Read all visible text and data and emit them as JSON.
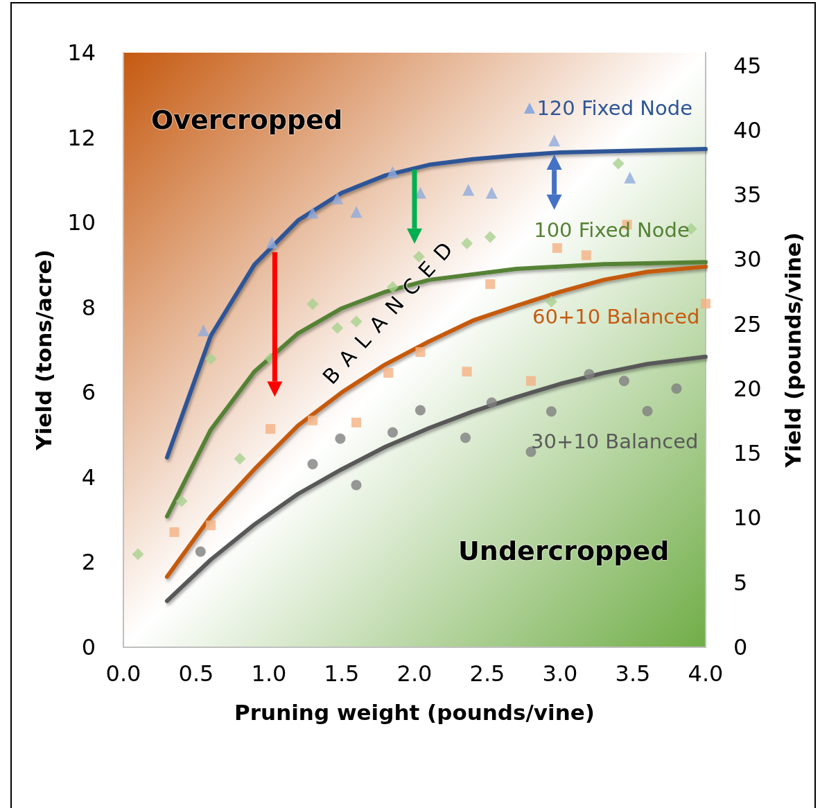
{
  "chart_data": {
    "type": "scatter",
    "xlabel": "Pruning weight (pounds/vine)",
    "ylabel": "Yield (tons/acre)",
    "y2label": "Yield (pounds/vine)",
    "xlim": [
      0,
      4
    ],
    "xticks": [
      {
        "value": 0,
        "label": "0.0"
      },
      0.5,
      {
        "value": 1,
        "label": "1.0"
      },
      1.5,
      {
        "value": 2,
        "label": "2.0"
      },
      2.5,
      {
        "value": 3,
        "label": "3.0"
      },
      3.5,
      {
        "value": 4,
        "label": "4.0"
      }
    ],
    "ylim": [
      0,
      14
    ],
    "yticks": [
      0,
      2,
      4,
      6,
      8,
      10,
      12,
      14
    ],
    "y2lim": [
      0,
      46
    ],
    "y2ticks": [
      0,
      5,
      10,
      15,
      20,
      25,
      30,
      35,
      40,
      45
    ],
    "grid": false,
    "legend": false,
    "annotations": [
      "Overcropped",
      "Undercropped",
      "BALANCED"
    ],
    "series": [
      {
        "marker": "triangle",
        "color": "#8faadc",
        "x": [
          0.55,
          1.02,
          1.3,
          1.47,
          1.6,
          1.85,
          2.04,
          2.37,
          2.53,
          2.96,
          3.48
        ],
        "values": [
          7.46,
          9.53,
          10.23,
          10.57,
          10.25,
          11.19,
          10.7,
          10.77,
          10.7,
          11.93,
          11.06
        ]
      },
      {
        "marker": "diamond",
        "color": "#a9d18e",
        "x": [
          0.1,
          0.4,
          0.6,
          0.8,
          1.01,
          1.3,
          1.47,
          1.6,
          1.85,
          2.03,
          2.36,
          2.52,
          2.94,
          3.4,
          3.9
        ],
        "values": [
          2.19,
          3.44,
          6.79,
          4.44,
          6.8,
          8.08,
          7.52,
          7.67,
          8.48,
          9.2,
          9.51,
          9.66,
          8.14,
          11.39,
          9.85
        ]
      },
      {
        "marker": "square",
        "color": "#f4b183",
        "x": [
          0.35,
          0.6,
          1.01,
          1.3,
          1.6,
          1.82,
          2.04,
          2.36,
          2.52,
          2.8,
          2.98,
          3.18,
          3.46,
          4.0
        ],
        "values": [
          2.71,
          2.87,
          5.14,
          5.34,
          5.29,
          6.46,
          6.95,
          6.49,
          8.55,
          6.27,
          9.4,
          9.23,
          9.95,
          8.09
        ]
      },
      {
        "marker": "circle",
        "color": "#7f7f7f",
        "x": [
          0.53,
          1.3,
          1.49,
          1.6,
          1.85,
          2.04,
          2.35,
          2.53,
          2.8,
          2.94,
          3.2,
          3.44,
          3.6,
          3.8
        ],
        "values": [
          2.25,
          4.31,
          4.91,
          3.82,
          5.06,
          5.58,
          4.93,
          5.76,
          4.6,
          5.55,
          6.43,
          6.27,
          5.56,
          6.09
        ]
      },
      {
        "type": "line",
        "name": "120 Fixed Node",
        "marker": "none",
        "line_style": "solid",
        "color": "#2f5597",
        "x": [
          0.3,
          0.6,
          0.9,
          1.2,
          1.5,
          1.8,
          2.1,
          2.4,
          2.7,
          3.0,
          4.0
        ],
        "values": [
          4.47,
          7.33,
          9.01,
          10.05,
          10.7,
          11.11,
          11.36,
          11.49,
          11.58,
          11.65,
          11.73
        ]
      },
      {
        "type": "line",
        "name": "100 Fixed Node",
        "marker": "none",
        "line_style": "solid",
        "color": "#548235",
        "x": [
          0.3,
          0.6,
          0.9,
          1.2,
          1.5,
          1.8,
          2.1,
          2.7,
          3.3,
          4.0
        ],
        "values": [
          3.08,
          5.12,
          6.49,
          7.39,
          7.98,
          8.37,
          8.65,
          8.91,
          9.02,
          9.07
        ]
      },
      {
        "type": "line",
        "name": "60+10 Balanced",
        "marker": "none",
        "line_style": "solid",
        "color": "#c55a11",
        "x": [
          0.3,
          0.6,
          0.9,
          1.2,
          1.5,
          1.8,
          2.1,
          2.4,
          2.7,
          3.0,
          3.3,
          3.6,
          4.0
        ],
        "values": [
          1.66,
          3.08,
          4.19,
          5.22,
          6.0,
          6.66,
          7.2,
          7.69,
          8.04,
          8.37,
          8.65,
          8.84,
          8.96
        ]
      },
      {
        "type": "line",
        "name": "30+10 Balanced",
        "marker": "none",
        "line_style": "solid",
        "color": "#595959",
        "x": [
          0.3,
          0.6,
          0.9,
          1.2,
          1.5,
          1.8,
          2.1,
          2.4,
          2.7,
          3.0,
          3.3,
          3.6,
          4.0
        ],
        "values": [
          1.09,
          2.06,
          2.89,
          3.61,
          4.19,
          4.72,
          5.16,
          5.55,
          5.89,
          6.2,
          6.46,
          6.67,
          6.84
        ]
      }
    ]
  }
}
